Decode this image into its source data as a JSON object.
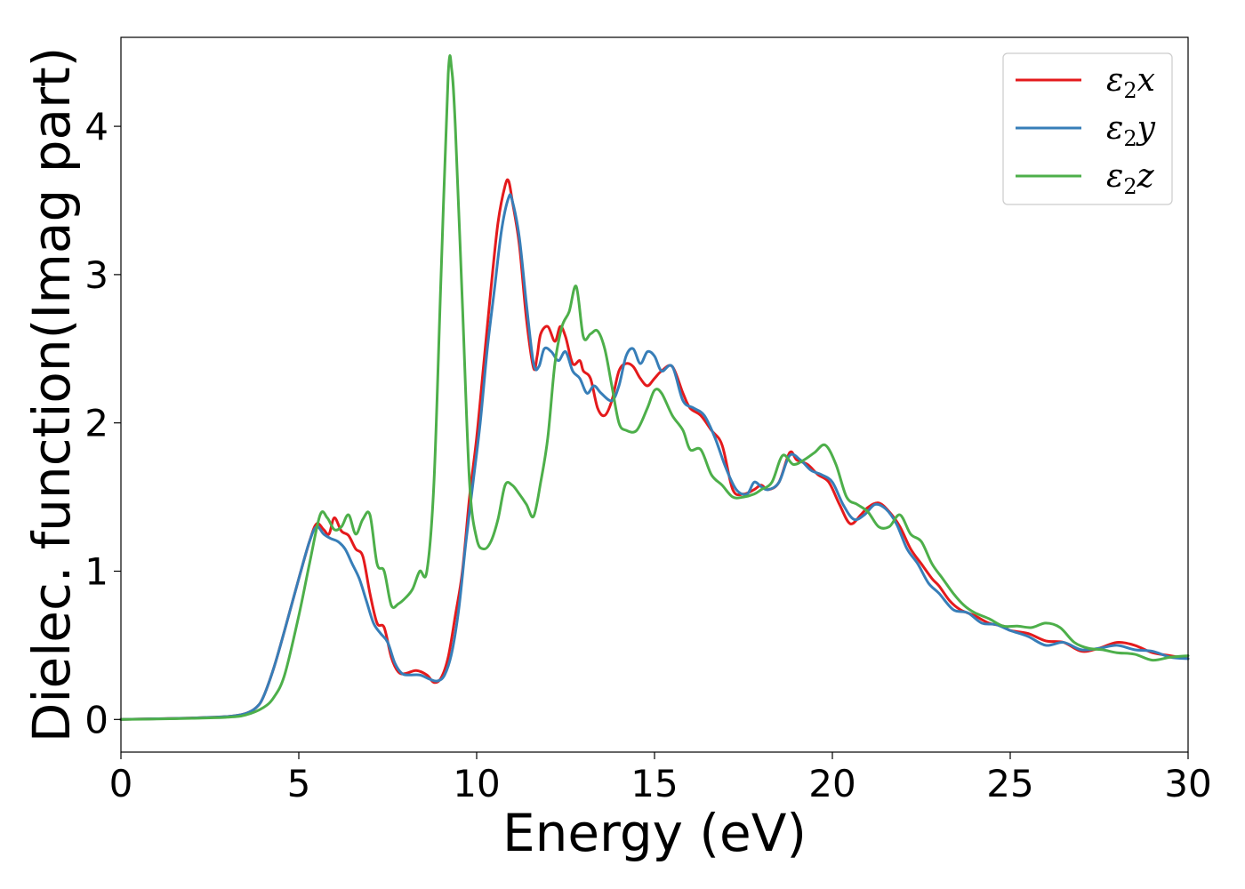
{
  "chart_data": {
    "type": "line",
    "xlabel": "Energy (eV)",
    "ylabel": "Dielec. function(Imag part)",
    "xlim": [
      0,
      30
    ],
    "ylim": [
      -0.22,
      4.6
    ],
    "xticks": [
      0,
      5,
      10,
      15,
      20,
      25,
      30
    ],
    "yticks": [
      0,
      1,
      2,
      3,
      4
    ],
    "grid": false,
    "legend_position": "top-right",
    "series": [
      {
        "name": "ε₂x",
        "legend_base": "ε",
        "legend_sub": "2",
        "legend_suffix": "x",
        "color": "#e41a1c",
        "x": [
          0,
          1,
          2,
          3,
          3.5,
          3.8,
          4.0,
          4.3,
          4.6,
          5.0,
          5.3,
          5.5,
          5.7,
          5.85,
          6.0,
          6.2,
          6.4,
          6.6,
          6.8,
          7.0,
          7.2,
          7.4,
          7.6,
          7.8,
          8.0,
          8.3,
          8.6,
          8.8,
          9.0,
          9.2,
          9.4,
          9.6,
          9.8,
          10.0,
          10.2,
          10.4,
          10.6,
          10.8,
          10.9,
          11.0,
          11.2,
          11.4,
          11.6,
          11.7,
          11.8,
          12.0,
          12.2,
          12.35,
          12.5,
          12.7,
          12.9,
          13.0,
          13.2,
          13.4,
          13.6,
          13.8,
          14.0,
          14.2,
          14.4,
          14.6,
          14.8,
          15.0,
          15.2,
          15.5,
          15.8,
          16.0,
          16.3,
          16.6,
          16.9,
          17.2,
          17.5,
          17.8,
          18.0,
          18.2,
          18.5,
          18.8,
          19.0,
          19.3,
          19.6,
          19.9,
          20.2,
          20.5,
          20.8,
          21.0,
          21.3,
          21.6,
          21.9,
          22.2,
          22.5,
          22.8,
          23.0,
          23.3,
          23.6,
          24.0,
          24.4,
          24.8,
          25.0,
          25.5,
          26.0,
          26.5,
          27.0,
          27.5,
          28.0,
          28.5,
          29.0,
          29.5,
          30.0
        ],
        "y": [
          0.0,
          0.005,
          0.01,
          0.02,
          0.04,
          0.08,
          0.15,
          0.35,
          0.6,
          0.95,
          1.2,
          1.32,
          1.28,
          1.25,
          1.36,
          1.27,
          1.24,
          1.15,
          1.1,
          0.85,
          0.65,
          0.62,
          0.42,
          0.32,
          0.31,
          0.33,
          0.3,
          0.25,
          0.28,
          0.42,
          0.7,
          1.0,
          1.5,
          1.9,
          2.4,
          2.9,
          3.35,
          3.6,
          3.63,
          3.5,
          3.2,
          2.7,
          2.37,
          2.45,
          2.6,
          2.65,
          2.55,
          2.65,
          2.58,
          2.4,
          2.42,
          2.35,
          2.3,
          2.1,
          2.05,
          2.15,
          2.35,
          2.4,
          2.38,
          2.3,
          2.25,
          2.3,
          2.35,
          2.38,
          2.2,
          2.1,
          2.05,
          1.95,
          1.85,
          1.55,
          1.52,
          1.55,
          1.58,
          1.55,
          1.6,
          1.8,
          1.75,
          1.72,
          1.65,
          1.6,
          1.45,
          1.32,
          1.38,
          1.43,
          1.46,
          1.4,
          1.3,
          1.15,
          1.05,
          0.95,
          0.9,
          0.8,
          0.74,
          0.7,
          0.65,
          0.63,
          0.6,
          0.58,
          0.53,
          0.52,
          0.46,
          0.48,
          0.52,
          0.5,
          0.45,
          0.43,
          0.41
        ]
      },
      {
        "name": "ε₂y",
        "legend_base": "ε",
        "legend_sub": "2",
        "legend_suffix": "y",
        "color": "#377eb8",
        "x": [
          0,
          1,
          2,
          3,
          3.5,
          3.8,
          4.0,
          4.3,
          4.6,
          5.0,
          5.3,
          5.5,
          5.7,
          5.9,
          6.1,
          6.3,
          6.5,
          6.7,
          6.9,
          7.1,
          7.3,
          7.5,
          7.7,
          7.9,
          8.1,
          8.4,
          8.7,
          8.9,
          9.1,
          9.3,
          9.5,
          9.7,
          9.9,
          10.1,
          10.3,
          10.5,
          10.7,
          10.9,
          11.0,
          11.2,
          11.4,
          11.6,
          11.75,
          11.9,
          12.1,
          12.3,
          12.5,
          12.7,
          12.9,
          13.1,
          13.3,
          13.5,
          13.8,
          14.0,
          14.2,
          14.4,
          14.6,
          14.8,
          15.0,
          15.2,
          15.5,
          15.8,
          16.1,
          16.4,
          16.7,
          17.0,
          17.3,
          17.6,
          17.8,
          18.0,
          18.2,
          18.5,
          18.8,
          19.1,
          19.4,
          19.7,
          20.0,
          20.3,
          20.6,
          20.9,
          21.2,
          21.5,
          21.8,
          22.1,
          22.4,
          22.7,
          23.0,
          23.4,
          23.8,
          24.2,
          24.6,
          25.0,
          25.5,
          26.0,
          26.5,
          27.0,
          27.5,
          28.0,
          28.5,
          29.0,
          29.5,
          30.0
        ],
        "y": [
          0.0,
          0.005,
          0.01,
          0.02,
          0.04,
          0.08,
          0.15,
          0.35,
          0.6,
          0.95,
          1.2,
          1.3,
          1.25,
          1.22,
          1.2,
          1.15,
          1.05,
          0.95,
          0.8,
          0.65,
          0.58,
          0.52,
          0.38,
          0.31,
          0.3,
          0.3,
          0.27,
          0.26,
          0.3,
          0.45,
          0.75,
          1.2,
          1.6,
          2.0,
          2.5,
          2.9,
          3.3,
          3.52,
          3.5,
          3.25,
          2.8,
          2.4,
          2.38,
          2.5,
          2.48,
          2.42,
          2.48,
          2.35,
          2.3,
          2.2,
          2.25,
          2.2,
          2.15,
          2.25,
          2.45,
          2.5,
          2.4,
          2.48,
          2.45,
          2.35,
          2.38,
          2.15,
          2.1,
          2.05,
          1.9,
          1.7,
          1.55,
          1.52,
          1.6,
          1.57,
          1.55,
          1.6,
          1.78,
          1.75,
          1.68,
          1.65,
          1.6,
          1.45,
          1.35,
          1.38,
          1.45,
          1.42,
          1.32,
          1.15,
          1.05,
          0.92,
          0.85,
          0.74,
          0.72,
          0.65,
          0.64,
          0.6,
          0.56,
          0.5,
          0.52,
          0.47,
          0.48,
          0.5,
          0.47,
          0.46,
          0.42,
          0.41
        ]
      },
      {
        "name": "ε₂z",
        "legend_base": "ε",
        "legend_sub": "2",
        "legend_suffix": "z",
        "color": "#4daf4a",
        "x": [
          0,
          1,
          2,
          3,
          3.5,
          4.0,
          4.3,
          4.6,
          5.0,
          5.3,
          5.6,
          5.8,
          6.0,
          6.2,
          6.4,
          6.6,
          6.8,
          7.0,
          7.2,
          7.4,
          7.6,
          7.8,
          8.0,
          8.2,
          8.4,
          8.6,
          8.8,
          9.0,
          9.2,
          9.3,
          9.4,
          9.6,
          9.8,
          10.0,
          10.2,
          10.4,
          10.6,
          10.8,
          11.0,
          11.2,
          11.4,
          11.6,
          11.8,
          12.0,
          12.2,
          12.4,
          12.6,
          12.8,
          13.0,
          13.2,
          13.4,
          13.6,
          13.8,
          14.0,
          14.2,
          14.5,
          14.8,
          15.0,
          15.2,
          15.5,
          15.8,
          16.0,
          16.3,
          16.6,
          16.9,
          17.2,
          17.5,
          17.8,
          18.0,
          18.3,
          18.6,
          18.9,
          19.2,
          19.5,
          19.8,
          20.1,
          20.4,
          20.7,
          21.0,
          21.3,
          21.6,
          21.9,
          22.2,
          22.5,
          22.8,
          23.1,
          23.4,
          23.7,
          24.0,
          24.4,
          24.8,
          25.2,
          25.6,
          26.0,
          26.4,
          26.8,
          27.2,
          27.6,
          28.0,
          28.5,
          29.0,
          29.5,
          30.0
        ],
        "y": [
          0.0,
          0.003,
          0.008,
          0.015,
          0.03,
          0.08,
          0.15,
          0.3,
          0.7,
          1.05,
          1.38,
          1.36,
          1.28,
          1.3,
          1.38,
          1.25,
          1.35,
          1.38,
          1.05,
          1.0,
          0.77,
          0.78,
          0.82,
          0.88,
          1.0,
          1.0,
          1.6,
          3.0,
          4.35,
          4.38,
          4.0,
          2.8,
          1.6,
          1.22,
          1.15,
          1.2,
          1.35,
          1.58,
          1.58,
          1.52,
          1.45,
          1.37,
          1.6,
          1.9,
          2.4,
          2.65,
          2.75,
          2.92,
          2.58,
          2.6,
          2.62,
          2.5,
          2.25,
          2.0,
          1.95,
          1.95,
          2.1,
          2.22,
          2.2,
          2.05,
          1.95,
          1.82,
          1.82,
          1.65,
          1.58,
          1.5,
          1.5,
          1.52,
          1.55,
          1.6,
          1.78,
          1.72,
          1.75,
          1.8,
          1.85,
          1.72,
          1.5,
          1.45,
          1.4,
          1.3,
          1.3,
          1.38,
          1.25,
          1.2,
          1.05,
          0.95,
          0.85,
          0.77,
          0.72,
          0.68,
          0.63,
          0.63,
          0.62,
          0.65,
          0.62,
          0.52,
          0.48,
          0.47,
          0.45,
          0.44,
          0.4,
          0.42,
          0.43
        ]
      }
    ]
  }
}
